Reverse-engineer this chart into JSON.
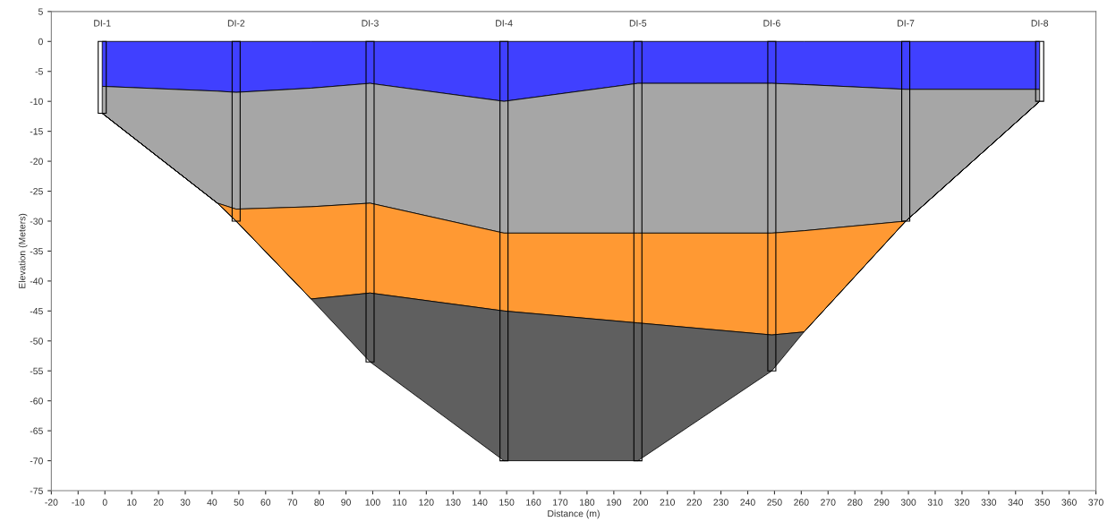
{
  "chart_data": {
    "type": "area",
    "stacked": true,
    "xlabel": "Distance (m)",
    "ylabel": "Elevation (Meters)",
    "x": [
      -1,
      42,
      49,
      77,
      99,
      149,
      199,
      249,
      261,
      299,
      349
    ],
    "series": [
      {
        "color": "#4040ff",
        "values": [
          -7.5,
          -8.3,
          -8.5,
          -7.8,
          -7,
          -10,
          -7,
          -7,
          -7.2,
          -8,
          -8
        ]
      },
      {
        "color": "#a6a6a6",
        "values": [
          -4.5,
          -18.7,
          -19.5,
          -19.8,
          -20,
          -22,
          -25,
          -25,
          -24.4,
          -22,
          -2
        ]
      },
      {
        "color": "#ff9933",
        "values": [
          0,
          0,
          -2,
          -15.4,
          -15,
          -13,
          -15,
          -17,
          -16.9,
          0,
          0
        ]
      },
      {
        "color": "#5f5f5f",
        "values": [
          0,
          0,
          0,
          0,
          -11.5,
          -25,
          -23,
          -6,
          0,
          0,
          0
        ]
      },
      {
        "type": "bar",
        "color": "#000000",
        "x": [
          -1,
          49,
          99,
          149,
          199,
          249,
          299,
          349
        ],
        "values": [
          -12,
          -30,
          -53.5,
          -70,
          -70,
          -55,
          -30,
          -10
        ]
      }
    ],
    "annotations": [
      {
        "text": "DI-1",
        "x": -1,
        "y": 0
      },
      {
        "text": "DI-2",
        "x": 49,
        "y": 0
      },
      {
        "text": "DI-3",
        "x": 99,
        "y": 0
      },
      {
        "text": "DI-4",
        "x": 149,
        "y": 0
      },
      {
        "text": "DI-5",
        "x": 199,
        "y": 0
      },
      {
        "text": "DI-6",
        "x": 249,
        "y": 0
      },
      {
        "text": "DI-7",
        "x": 299,
        "y": 0
      },
      {
        "text": "DI-8",
        "x": 349,
        "y": 0
      }
    ],
    "xlim": [
      -20,
      370
    ],
    "xticks": [
      -20,
      -10,
      0,
      10,
      20,
      30,
      40,
      50,
      60,
      70,
      80,
      90,
      100,
      110,
      120,
      130,
      140,
      150,
      160,
      170,
      180,
      190,
      200,
      210,
      220,
      230,
      240,
      250,
      260,
      270,
      280,
      290,
      300,
      310,
      320,
      330,
      340,
      350,
      360,
      370
    ],
    "ylim": [
      -75,
      5
    ],
    "yticks": [
      5,
      0,
      -5,
      -10,
      -15,
      -20,
      -25,
      -30,
      -35,
      -40,
      -45,
      -50,
      -55,
      -60,
      -65,
      -70,
      -75
    ],
    "grid": false,
    "legend": false
  }
}
